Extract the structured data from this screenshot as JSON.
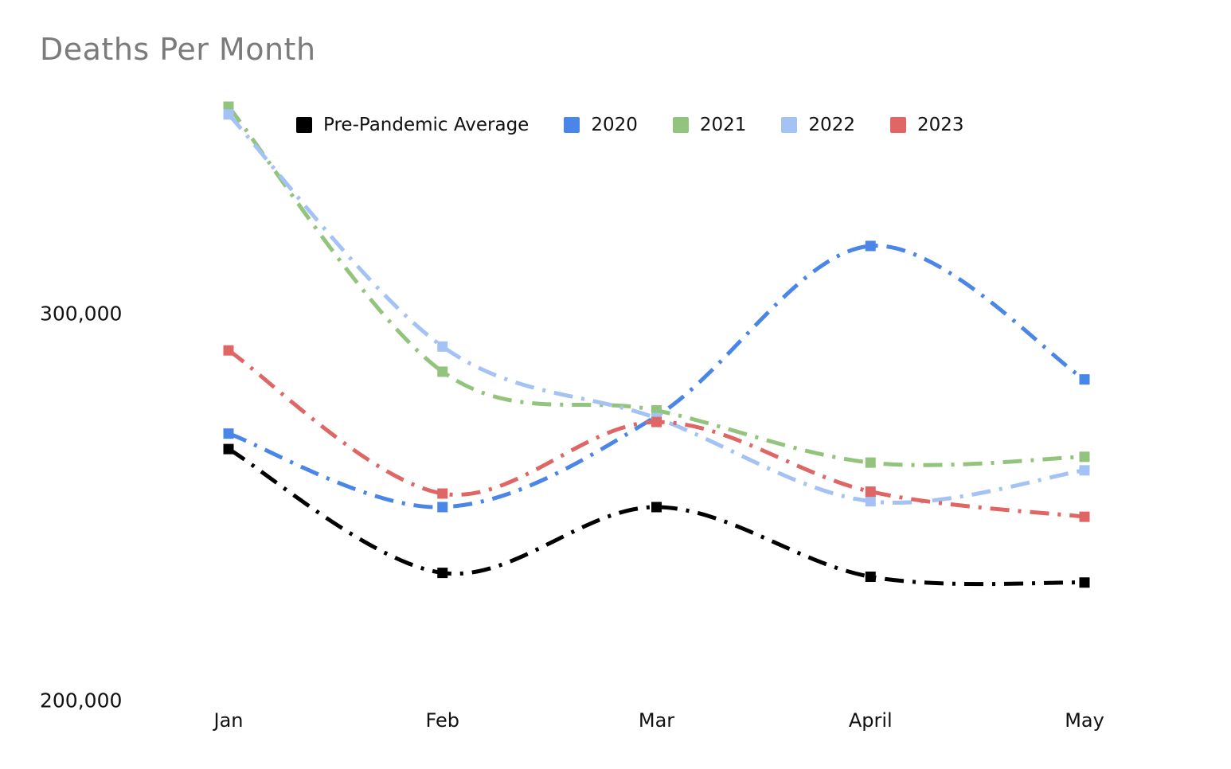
{
  "title": "Deaths Per Month",
  "chart_data": {
    "type": "line",
    "title": "Deaths Per Month",
    "categories": [
      "Jan",
      "Feb",
      "Mar",
      "April",
      "May"
    ],
    "series": [
      {
        "name": "Pre-Pandemic Average",
        "color": "#000000",
        "values": [
          265000,
          233000,
          250000,
          232000,
          230500
        ]
      },
      {
        "name": "2020",
        "color": "#4A86E8",
        "values": [
          269000,
          250000,
          273500,
          317500,
          283000
        ]
      },
      {
        "name": "2021",
        "color": "#93C47D",
        "values": [
          353500,
          285000,
          275000,
          261500,
          263000
        ]
      },
      {
        "name": "2022",
        "color": "#A4C2F4",
        "values": [
          351500,
          291500,
          273000,
          251500,
          259500
        ]
      },
      {
        "name": "2023",
        "color": "#E06666",
        "values": [
          290500,
          253500,
          272000,
          254000,
          247500
        ]
      }
    ],
    "y_ticks": [
      {
        "value": 300000,
        "label": "300,000"
      },
      {
        "value": 200000,
        "label": "200,000"
      }
    ],
    "ylim": [
      200000,
      360000
    ],
    "xlabel": "",
    "ylabel": "",
    "grid": false,
    "axis_lines": false,
    "line_style": "dash-dot",
    "marker": "square",
    "legend_position": "top"
  }
}
